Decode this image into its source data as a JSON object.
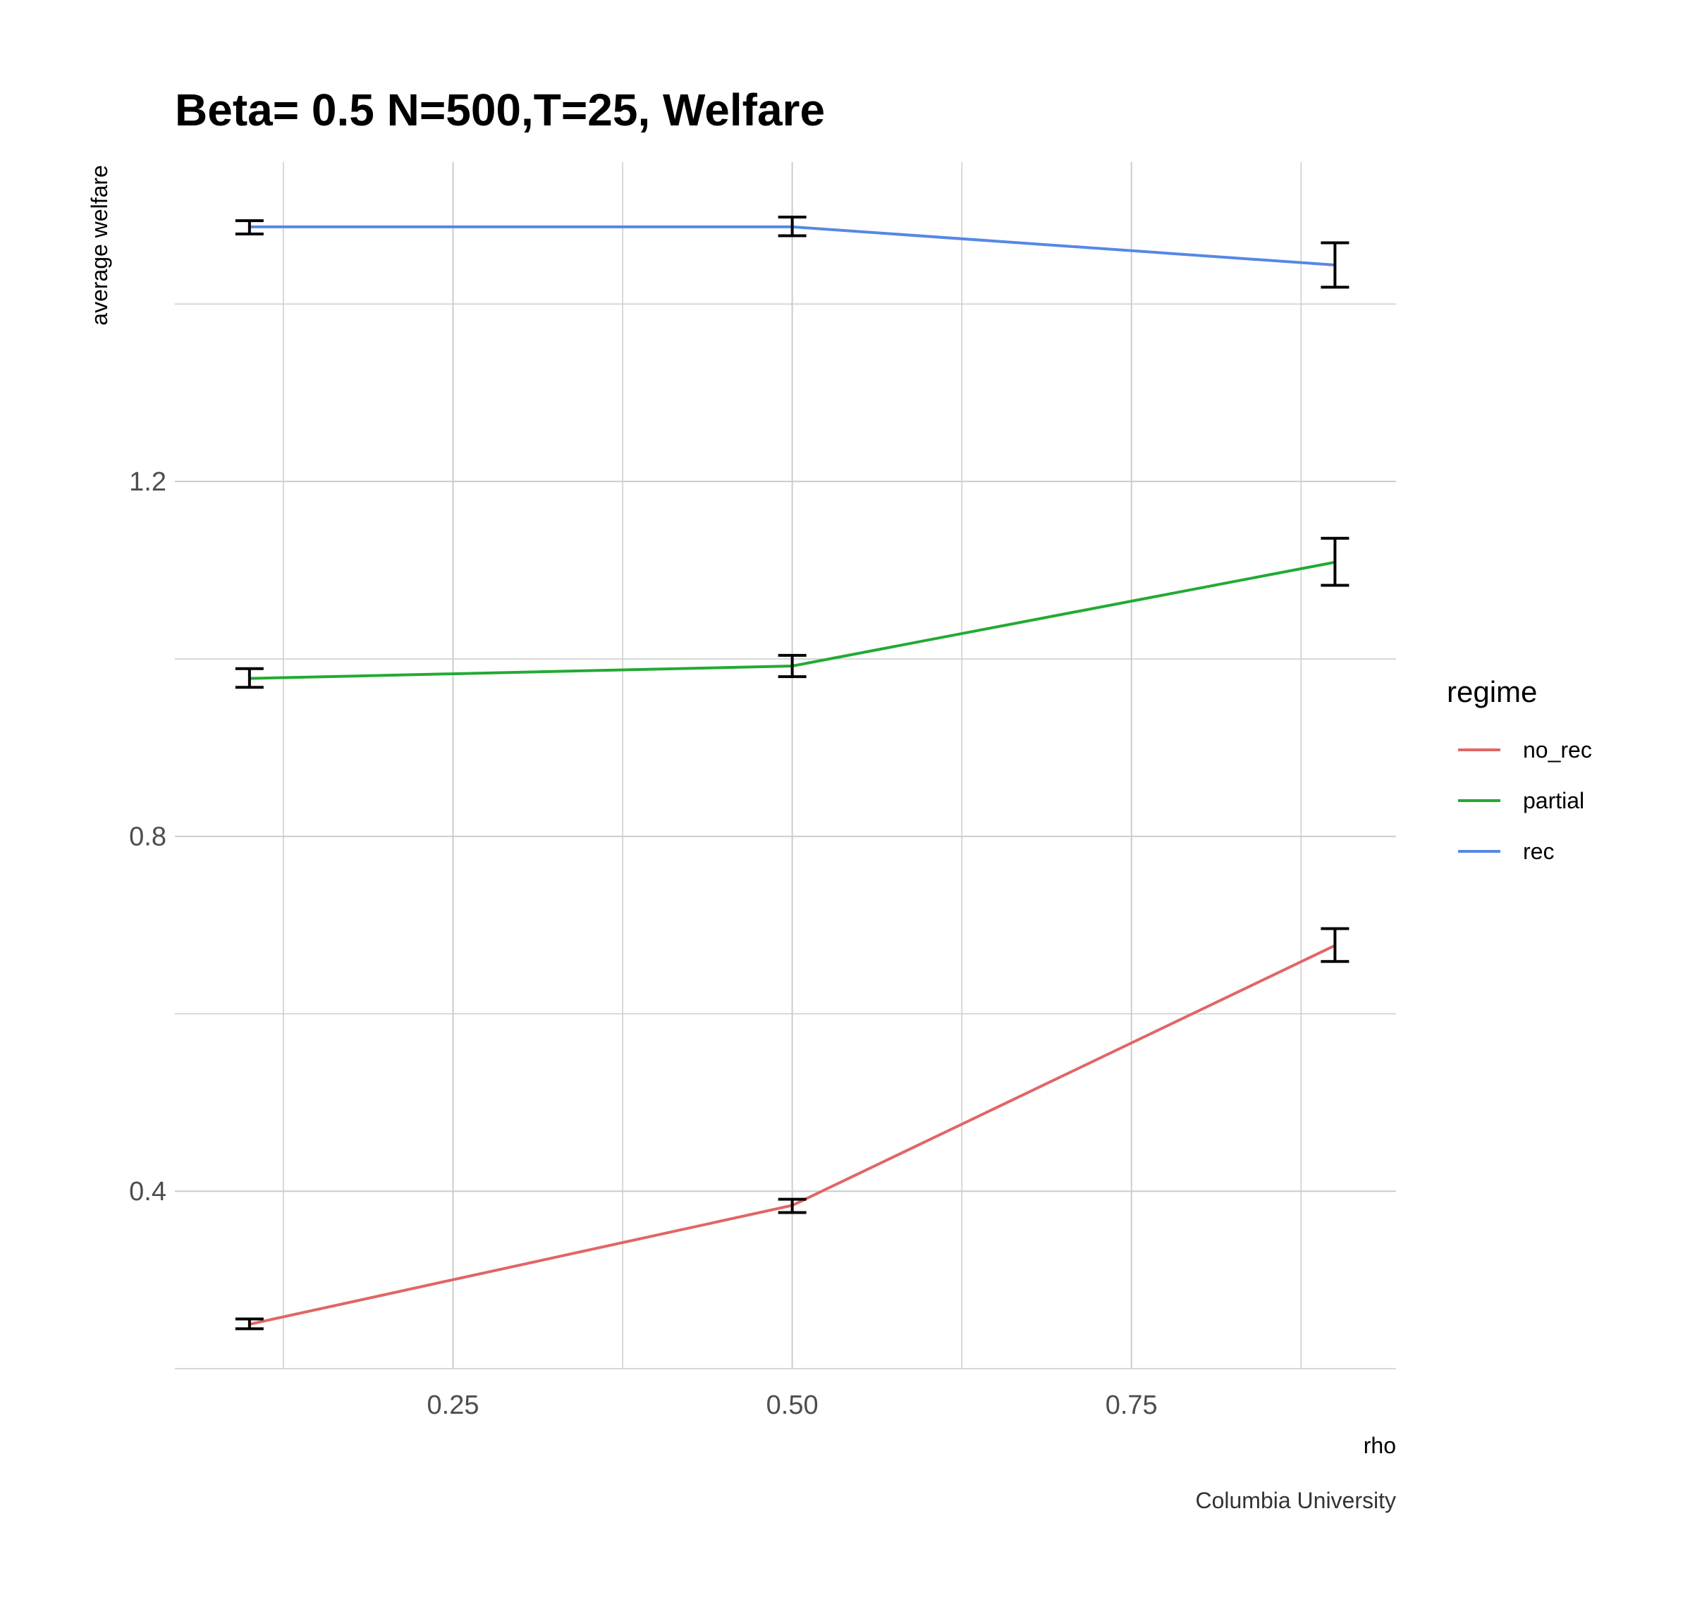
{
  "chart_data": {
    "type": "line",
    "title": "Beta= 0.5 N=500,T=25, Welfare",
    "xlabel": "rho",
    "ylabel": "average welfare",
    "caption": "Columbia University",
    "x_ticks": [
      0.25,
      0.5,
      0.75
    ],
    "x_tick_labels": [
      "0.25",
      "0.50",
      "0.75"
    ],
    "y_ticks": [
      0.4,
      0.8,
      1.2
    ],
    "y_tick_labels": [
      "0.4",
      "0.8",
      "1.2"
    ],
    "xlim": [
      0.045,
      0.945
    ],
    "ylim": [
      0.2,
      1.56
    ],
    "grid": true,
    "legend": {
      "title": "regime",
      "position": "right"
    },
    "x": [
      0.1,
      0.5,
      0.9
    ],
    "series": [
      {
        "name": "no_rec",
        "color": "#E06666",
        "values": [
          0.25,
          0.384,
          0.677
        ],
        "err_low": [
          0.245,
          0.376,
          0.659
        ],
        "err_high": [
          0.256,
          0.391,
          0.696
        ]
      },
      {
        "name": "partial",
        "color": "#22AA33",
        "values": [
          0.978,
          0.992,
          1.109
        ],
        "err_low": [
          0.968,
          0.98,
          1.083
        ],
        "err_high": [
          0.989,
          1.004,
          1.136
        ]
      },
      {
        "name": "rec",
        "color": "#5588E6",
        "values": [
          1.487,
          1.487,
          1.444
        ],
        "err_low": [
          1.479,
          1.477,
          1.419
        ],
        "err_high": [
          1.494,
          1.498,
          1.469
        ]
      }
    ]
  }
}
